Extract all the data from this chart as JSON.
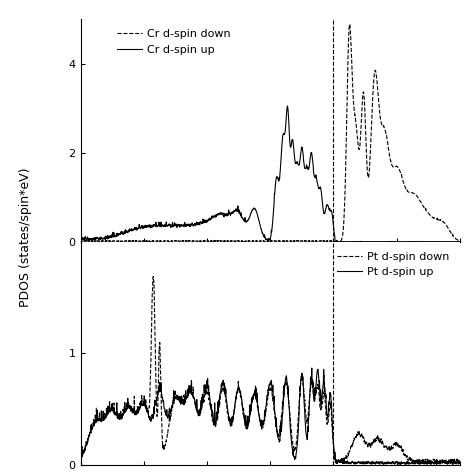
{
  "ylabel": "PDOS (states/spin*eV)",
  "top_panel": {
    "ylim": [
      0,
      5
    ],
    "yticks": [
      0,
      2,
      4
    ],
    "legend_labels_dashed": "Cr d-spin down",
    "legend_labels_solid": "Cr d-spin up"
  },
  "bottom_panel": {
    "ylim": [
      0,
      2
    ],
    "yticks": [
      0,
      1
    ],
    "legend_labels_dashed": "Pt d-spin down",
    "legend_labels_solid": "Pt d-spin up"
  },
  "vline_x": 0.0,
  "x_range": [
    -8,
    4
  ],
  "background_color": "#ffffff",
  "line_color": "#000000",
  "linewidth": 0.8
}
